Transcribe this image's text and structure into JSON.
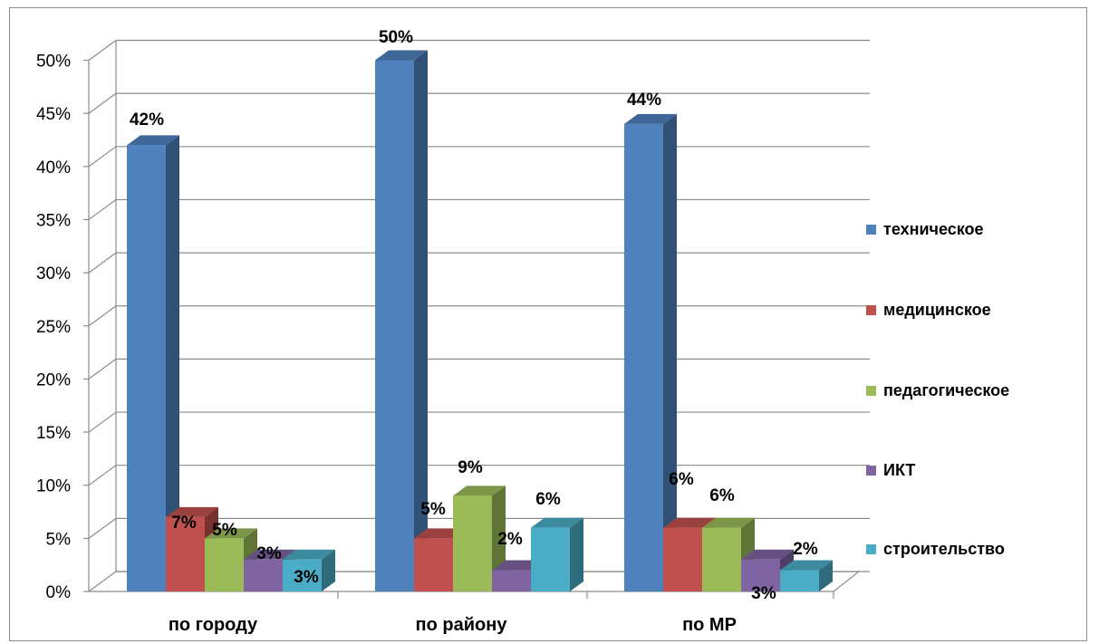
{
  "chart_data": {
    "type": "bar",
    "title": "",
    "xlabel": "",
    "ylabel": "",
    "categories": [
      "по городу",
      "по району",
      "по МР"
    ],
    "ylim": [
      0,
      50
    ],
    "yticks": [
      "0%",
      "5%",
      "10%",
      "15%",
      "20%",
      "25%",
      "30%",
      "35%",
      "40%",
      "45%",
      "50%"
    ],
    "grid": true,
    "legend_position": "right",
    "series": [
      {
        "name": "техническое",
        "color": "#4f81bd",
        "values": [
          42,
          50,
          44
        ],
        "labels": [
          "42%",
          "50%",
          "44%"
        ]
      },
      {
        "name": "медицинское",
        "color": "#c0504d",
        "values": [
          7,
          5,
          6
        ],
        "labels": [
          "7%",
          "5%",
          "6%"
        ]
      },
      {
        "name": "педагогическое",
        "color": "#9bbb59",
        "values": [
          5,
          9,
          6
        ],
        "labels": [
          "5%",
          "9%",
          "6%"
        ]
      },
      {
        "name": "ИКТ",
        "color": "#8064a2",
        "values": [
          3,
          2,
          3
        ],
        "labels": [
          "3%",
          "2%",
          "3%"
        ]
      },
      {
        "name": "строительство",
        "color": "#4bacc6",
        "values": [
          3,
          6,
          2
        ],
        "labels": [
          "3%",
          "6%",
          "2%"
        ]
      }
    ]
  }
}
